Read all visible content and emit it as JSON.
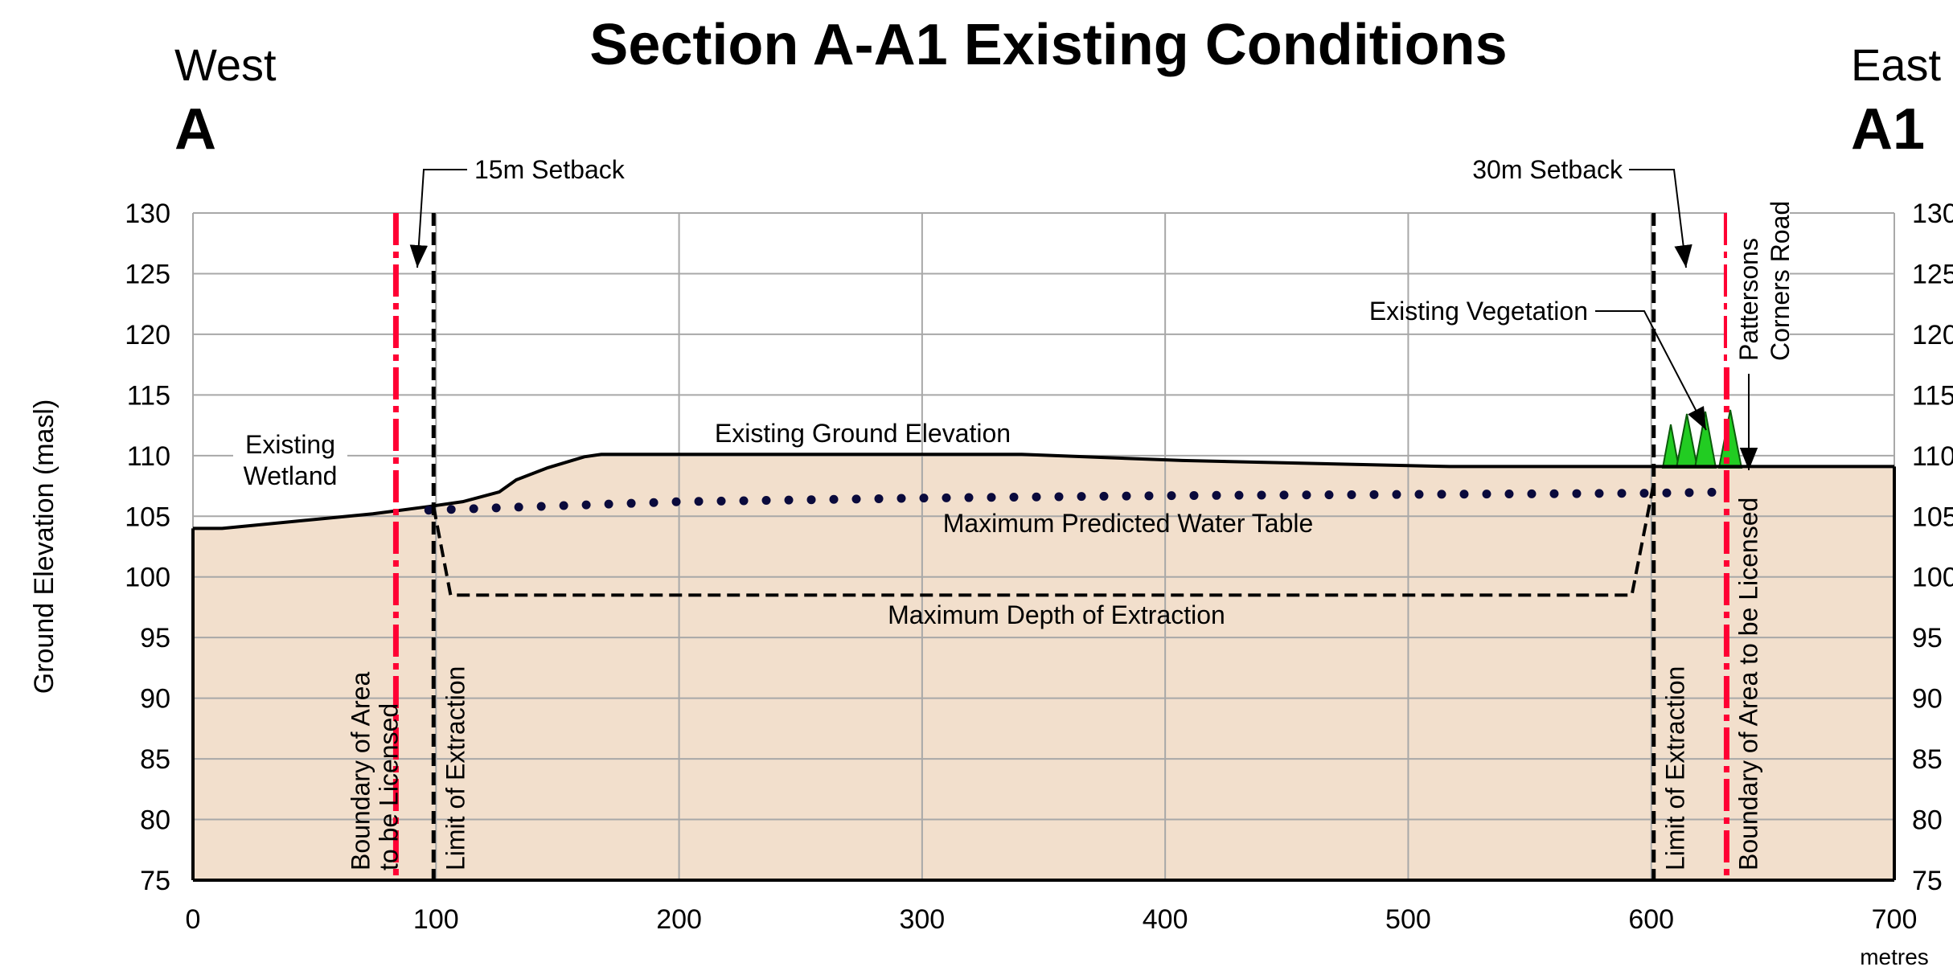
{
  "chart_data": {
    "type": "section",
    "title": "Section A-A1 Existing Conditions",
    "west": [
      "West",
      "A"
    ],
    "east": [
      "East",
      "A1"
    ],
    "y_label": "Ground Elevation (masl)",
    "x_unit": "metres",
    "xlim": [
      0,
      700
    ],
    "ylim": [
      75,
      130
    ],
    "xticks": [
      0,
      100,
      200,
      300,
      400,
      500,
      600,
      700
    ],
    "yticks": [
      75,
      80,
      85,
      90,
      95,
      100,
      105,
      110,
      115,
      120,
      125,
      130
    ],
    "grid": true,
    "ground_color": "#f2dfcc",
    "series": [
      {
        "name": "Existing Ground Elevation",
        "color": "#000000",
        "style": "solid",
        "x": [
          0,
          12,
          74,
          97,
          111,
          126,
          133,
          146,
          161,
          168,
          341,
          407,
          517,
          700
        ],
        "values": [
          104.0,
          104.0,
          105.2,
          105.8,
          106.2,
          107.0,
          108.0,
          109.0,
          109.9,
          110.1,
          110.1,
          109.6,
          109.1,
          109.1
        ]
      },
      {
        "name": "Maximum Predicted Water Table",
        "color": "#0a0a3c",
        "style": "dotted",
        "x": [
          97,
          200,
          300,
          400,
          500,
          600,
          630
        ],
        "values": [
          105.5,
          106.2,
          106.5,
          106.7,
          106.8,
          106.9,
          107.0
        ]
      },
      {
        "name": "Maximum Depth of Extraction",
        "color": "#000000",
        "style": "dashed",
        "x": [
          99,
          106,
          592,
          601
        ],
        "values": [
          105.8,
          98.5,
          98.5,
          107.7
        ]
      }
    ],
    "verticals": [
      {
        "label": [
          "Boundary of Area",
          "to be Licensed"
        ],
        "x": 83.5,
        "color": "#ff0033",
        "style": "dash-dot"
      },
      {
        "label": [
          "Limit of Extraction"
        ],
        "x": 99,
        "color": "#000000",
        "style": "dashed"
      },
      {
        "label": [
          "Limit of Extraction"
        ],
        "x": 601,
        "color": "#000000",
        "style": "dashed"
      },
      {
        "label": [
          "Boundary of Area to be Licensed"
        ],
        "x": 631,
        "color": "#ff0033",
        "style": "dash-dot"
      }
    ],
    "annotations": {
      "wetland": [
        "Existing",
        "Wetland"
      ],
      "setback_west": "15m Setback",
      "setback_east": "30m Setback",
      "vegetation": "Existing Vegetation",
      "road": [
        "Pattersons",
        "Corners Road"
      ]
    }
  }
}
